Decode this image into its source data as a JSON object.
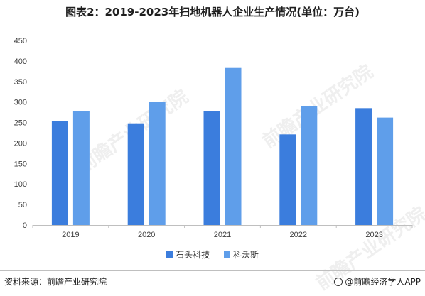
{
  "chart_data": {
    "type": "bar",
    "title": "图表2：2019-2023年扫地机器人企业生产情况(单位：万台)",
    "categories": [
      "2019",
      "2020",
      "2021",
      "2022",
      "2023"
    ],
    "series": [
      {
        "name": "石头科技",
        "values": [
          253,
          248,
          278,
          221,
          285
        ],
        "color": "#3b7ddd"
      },
      {
        "name": "科沃斯",
        "values": [
          278,
          300,
          383,
          290,
          262
        ],
        "color": "#5f9eea"
      }
    ],
    "ylim": [
      0,
      450
    ],
    "yticks": [
      0,
      50,
      100,
      150,
      200,
      250,
      300,
      350,
      400,
      450
    ],
    "grid": false,
    "legend": "bottom"
  },
  "footer": {
    "source": "资料来源：前瞻产业研究院",
    "brand": "@前瞻经济学人APP"
  },
  "watermark_text": "前瞻产业研究院"
}
